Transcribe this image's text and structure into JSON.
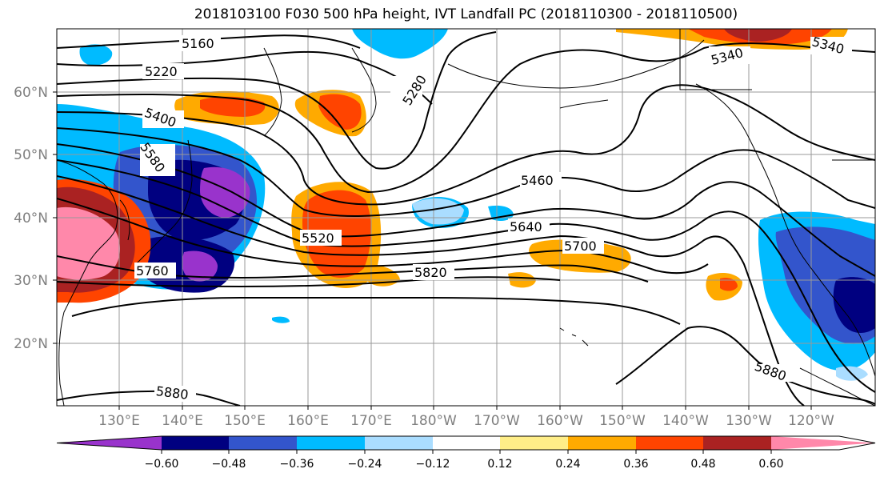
{
  "title": "2018103100 F030 500 hPa height, IVT Landfall PC (2018110300 - 2018110500)",
  "latitude_labels": [
    "60°N",
    "50°N",
    "40°N",
    "30°N",
    "20°N"
  ],
  "longitude_labels": [
    "130°E",
    "140°E",
    "150°E",
    "160°E",
    "170°E",
    "180°W",
    "170°W",
    "160°W",
    "150°W",
    "140°W",
    "130°W",
    "120°W"
  ],
  "contour_labels": [
    "5160",
    "5220",
    "5280",
    "5340",
    "5340",
    "5400",
    "5580",
    "5460",
    "5520",
    "5640",
    "5700",
    "5760",
    "5820",
    "5880",
    "5880"
  ],
  "colorbar": {
    "tick_labels": [
      "−0.60",
      "−0.48",
      "−0.36",
      "−0.24",
      "−0.12",
      "0.12",
      "0.24",
      "0.36",
      "0.48",
      "0.60"
    ],
    "colors": [
      "#9933cc",
      "#000080",
      "#3355cc",
      "#00bbff",
      "#aaddff",
      "#ffffff",
      "#ffee88",
      "#ffaa00",
      "#ff4400",
      "#aa2222",
      "#ff88aa"
    ]
  },
  "colors": {
    "positive_strong": "#aa2222",
    "positive_pink": "#ff88aa",
    "positive_red": "#ff4400",
    "positive_orange": "#ffaa00",
    "positive_yellow": "#ffee88",
    "negative_light": "#aaddff",
    "negative_cyan": "#00bbff",
    "negative_blue": "#3355cc",
    "negative_navy": "#000080",
    "negative_purple": "#9933cc"
  }
}
